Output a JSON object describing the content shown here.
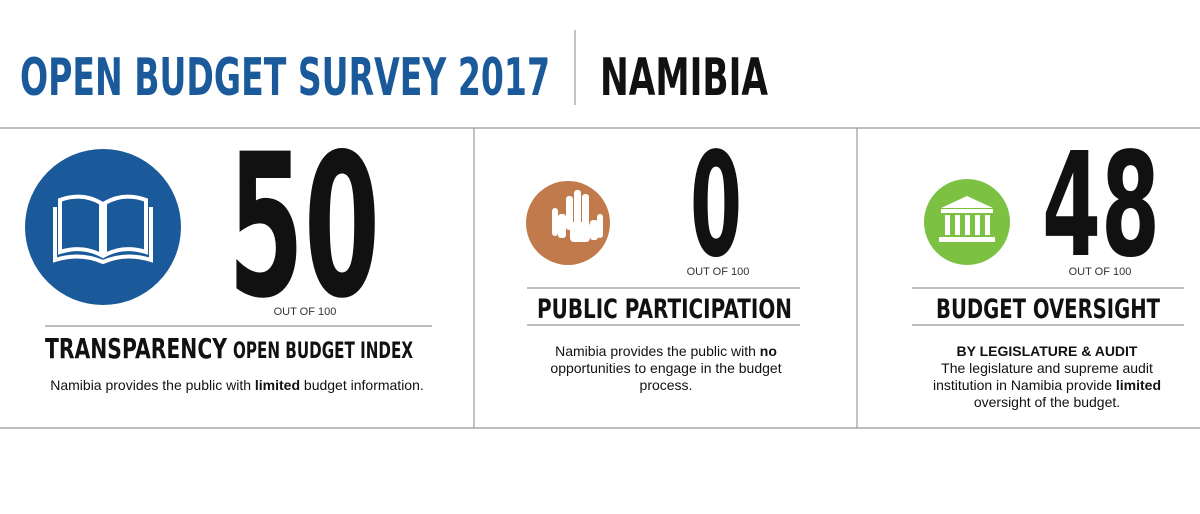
{
  "header": {
    "title": "OPEN BUDGET SURVEY 2017",
    "country": "NAMIBIA"
  },
  "panels": [
    {
      "score": "50",
      "out_of": "OUT OF 100",
      "title": "TRANSPARENCY",
      "subtitle": "OPEN BUDGET INDEX",
      "description": [
        [
          "Namibia provides the public with ",
          "limited",
          " budget information."
        ]
      ]
    },
    {
      "score": "0",
      "out_of": "OUT OF 100",
      "title": "PUBLIC PARTICIPATION",
      "description": [
        [
          "Namibia provides the public with ",
          "no"
        ],
        [
          "opportunities to engage in the budget"
        ],
        [
          "process."
        ]
      ]
    },
    {
      "score": "48",
      "out_of": "OUT OF 100",
      "title": "BUDGET OVERSIGHT",
      "subtitle": "BY LEGISLATURE & AUDIT",
      "description": [
        [
          "The legislature and supreme audit"
        ],
        [
          "institution in Namibia provide ",
          "limited"
        ],
        [
          "oversight of the budget."
        ]
      ]
    }
  ]
}
